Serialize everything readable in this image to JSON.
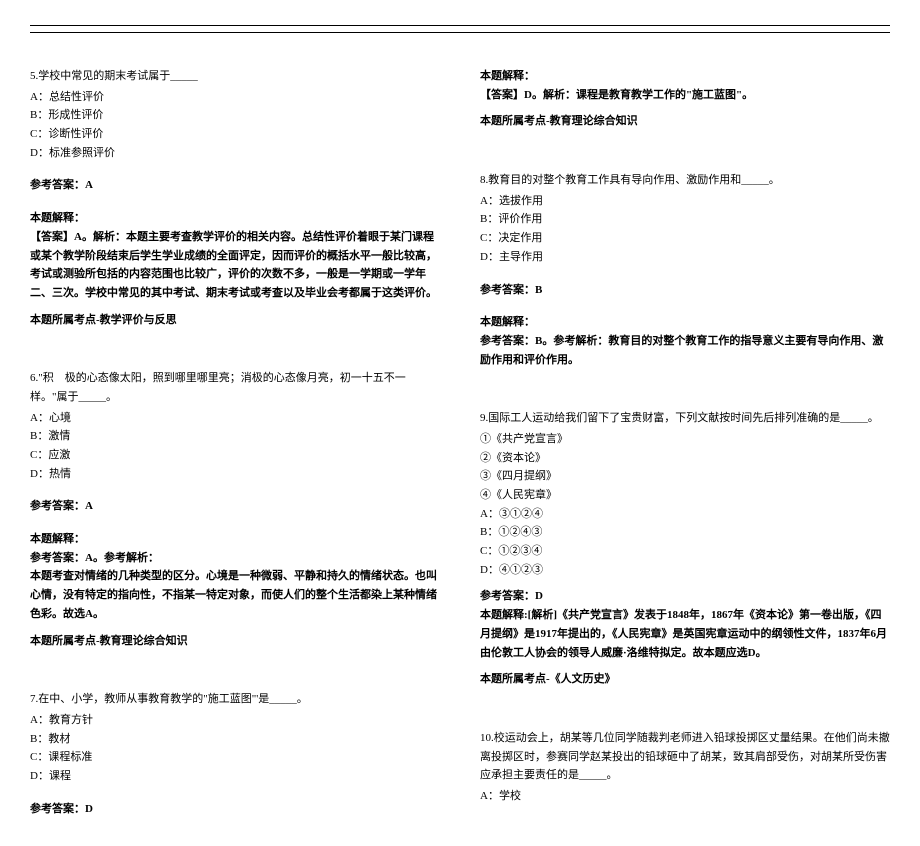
{
  "col_left": {
    "q5": {
      "stem": "5.学校中常见的期末考试属于_____",
      "A": "A：总结性评价",
      "B": "B：形成性评价",
      "C": "C：诊断性评价",
      "D": "D：标准参照评价",
      "ans_label": "参考答案：A",
      "exp_label": "本题解释：",
      "exp_body": "【答案】A。解析：本题主要考查教学评价的相关内容。总结性评价着眼于某门课程或某个教学阶段结束后学生学业成绩的全面评定，因而评价的概括水平一般比较高，考试或测验所包括的内容范围也比较广，评价的次数不多，一般是一学期或一学年二、三次。学校中常见的其中考试、期末考试或考查以及毕业会考都属于这类评价。",
      "topic": "本题所属考点-教学评价与反思"
    },
    "q6": {
      "stem": "6.\"积　极的心态像太阳，照到哪里哪里亮；消极的心态像月亮，初一十五不一样。\"属于_____。",
      "A": "A：心境",
      "B": "B：激情",
      "C": "C：应激",
      "D": "D：热情",
      "ans_label": "参考答案：A",
      "exp_label": "本题解释：",
      "exp_l1": "参考答案：A。参考解析：",
      "exp_l2": "本题考查对情绪的几种类型的区分。心境是一种微弱、平静和持久的情绪状态。也叫心情，没有特定的指向性，不指某一特定对象，而使人们的整个生活都染上某种情绪色彩。故选A。",
      "topic": "本题所属考点-教育理论综合知识"
    },
    "q7": {
      "stem": "7.在中、小学，教师从事教育教学的\"施工蓝图\"'是_____。",
      "A": "A：教育方针",
      "B": "B：教材",
      "C": "C：课程标准",
      "D": "D：课程",
      "ans_label": "参考答案：D"
    }
  },
  "col_right": {
    "q7_exp": {
      "exp_label": "本题解释：",
      "exp_body": "【答案】D。解析：课程是教育教学工作的\"施工蓝图\"。",
      "topic": "本题所属考点-教育理论综合知识"
    },
    "q8": {
      "stem": "8.教育目的对整个教育工作具有导向作用、激励作用和_____。",
      "A": "A：选拔作用",
      "B": "B：评价作用",
      "C": "C：决定作用",
      "D": "D：主导作用",
      "ans_label": "参考答案：B",
      "exp_label": "本题解释：",
      "exp_body": "参考答案：B。参考解析：教育目的对整个教育工作的指导意义主要有导向作用、激励作用和评价作用。"
    },
    "q9": {
      "stem": "9.国际工人运动给我们留下了宝贵财富，下列文献按时间先后排列准确的是_____。",
      "o1": "①《共产党宣言》",
      "o2": "②《资本论》",
      "o3": "③《四月提纲》",
      "o4": "④《人民宪章》",
      "A": "A：③①②④",
      "B": "B：①②④③",
      "C": "C：①②③④",
      "D": "D：④①②③",
      "ans_label": "参考答案：D",
      "exp_body": "本题解释:[解析]《共产党宣言》发表于1848年，1867年《资本论》第一卷出版，《四月提纲》是1917年提出的，《人民宪章》是英国宪章运动中的纲领性文件，1837年6月由伦敦工人协会的领导人威廉·洛维特拟定。故本题应选D。",
      "topic": "本题所属考点-《人文历史》"
    },
    "q10": {
      "stem": "10.校运动会上，胡某等几位同学随裁判老师进入铅球投掷区丈量结果。在他们尚未撤离投掷区时，参赛同学赵某投出的铅球砸中了胡某，致其肩部受伤，对胡某所受伤害应承担主要责任的是_____。",
      "A": "A：学校"
    }
  }
}
